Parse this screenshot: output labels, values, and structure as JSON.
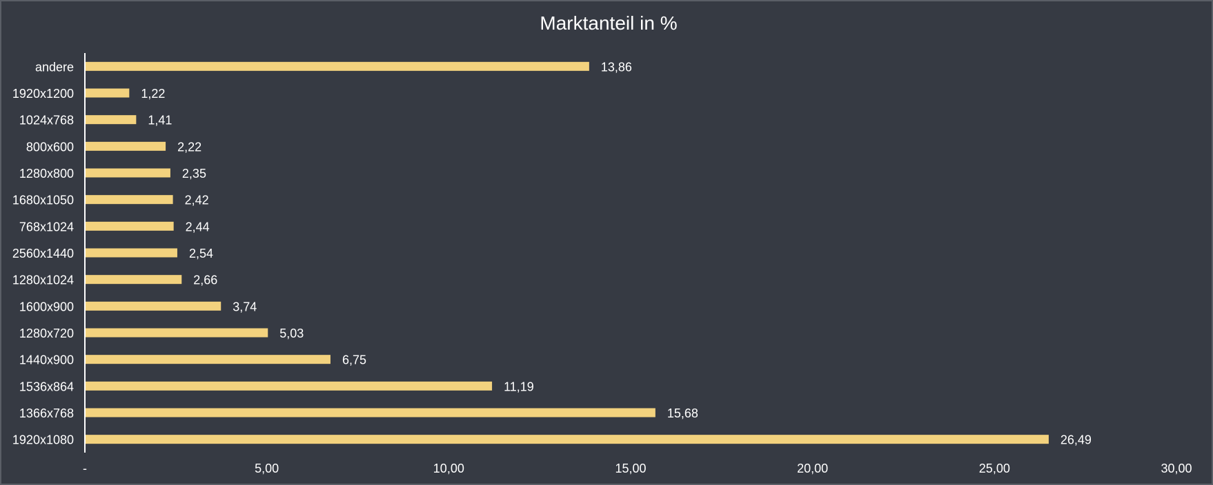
{
  "colors": {
    "background": "#363a43",
    "frame": "#5a5e66",
    "bar": "#f3d27e",
    "text": "#ffffff",
    "axis": "#ffffff"
  },
  "chart_data": {
    "type": "bar",
    "orientation": "horizontal",
    "title": "Marktanteil in %",
    "xlabel": "",
    "ylabel": "",
    "categories": [
      "1920x1080",
      "1366x768",
      "1536x864",
      "1440x900",
      "1280x720",
      "1600x900",
      "1280x1024",
      "2560x1440",
      "768x1024",
      "1680x1050",
      "1280x800",
      "800x600",
      "1024x768",
      "1920x1200",
      "andere"
    ],
    "values": [
      26.49,
      15.68,
      11.19,
      6.75,
      5.03,
      3.74,
      2.66,
      2.54,
      2.44,
      2.42,
      2.35,
      2.22,
      1.41,
      1.22,
      13.86
    ],
    "value_labels": [
      "26,49",
      "15,68",
      "11,19",
      "6,75",
      "5,03",
      "3,74",
      "2,66",
      "2,54",
      "2,44",
      "2,42",
      "2,35",
      "2,22",
      "1,41",
      "1,22",
      "13,86"
    ],
    "xlim": [
      0,
      30
    ],
    "x_ticks": [
      0,
      5,
      10,
      15,
      20,
      25,
      30
    ],
    "x_tick_labels": [
      "-",
      "5,00",
      "10,00",
      "15,00",
      "20,00",
      "25,00",
      "30,00"
    ],
    "grid": false,
    "legend": "none"
  }
}
